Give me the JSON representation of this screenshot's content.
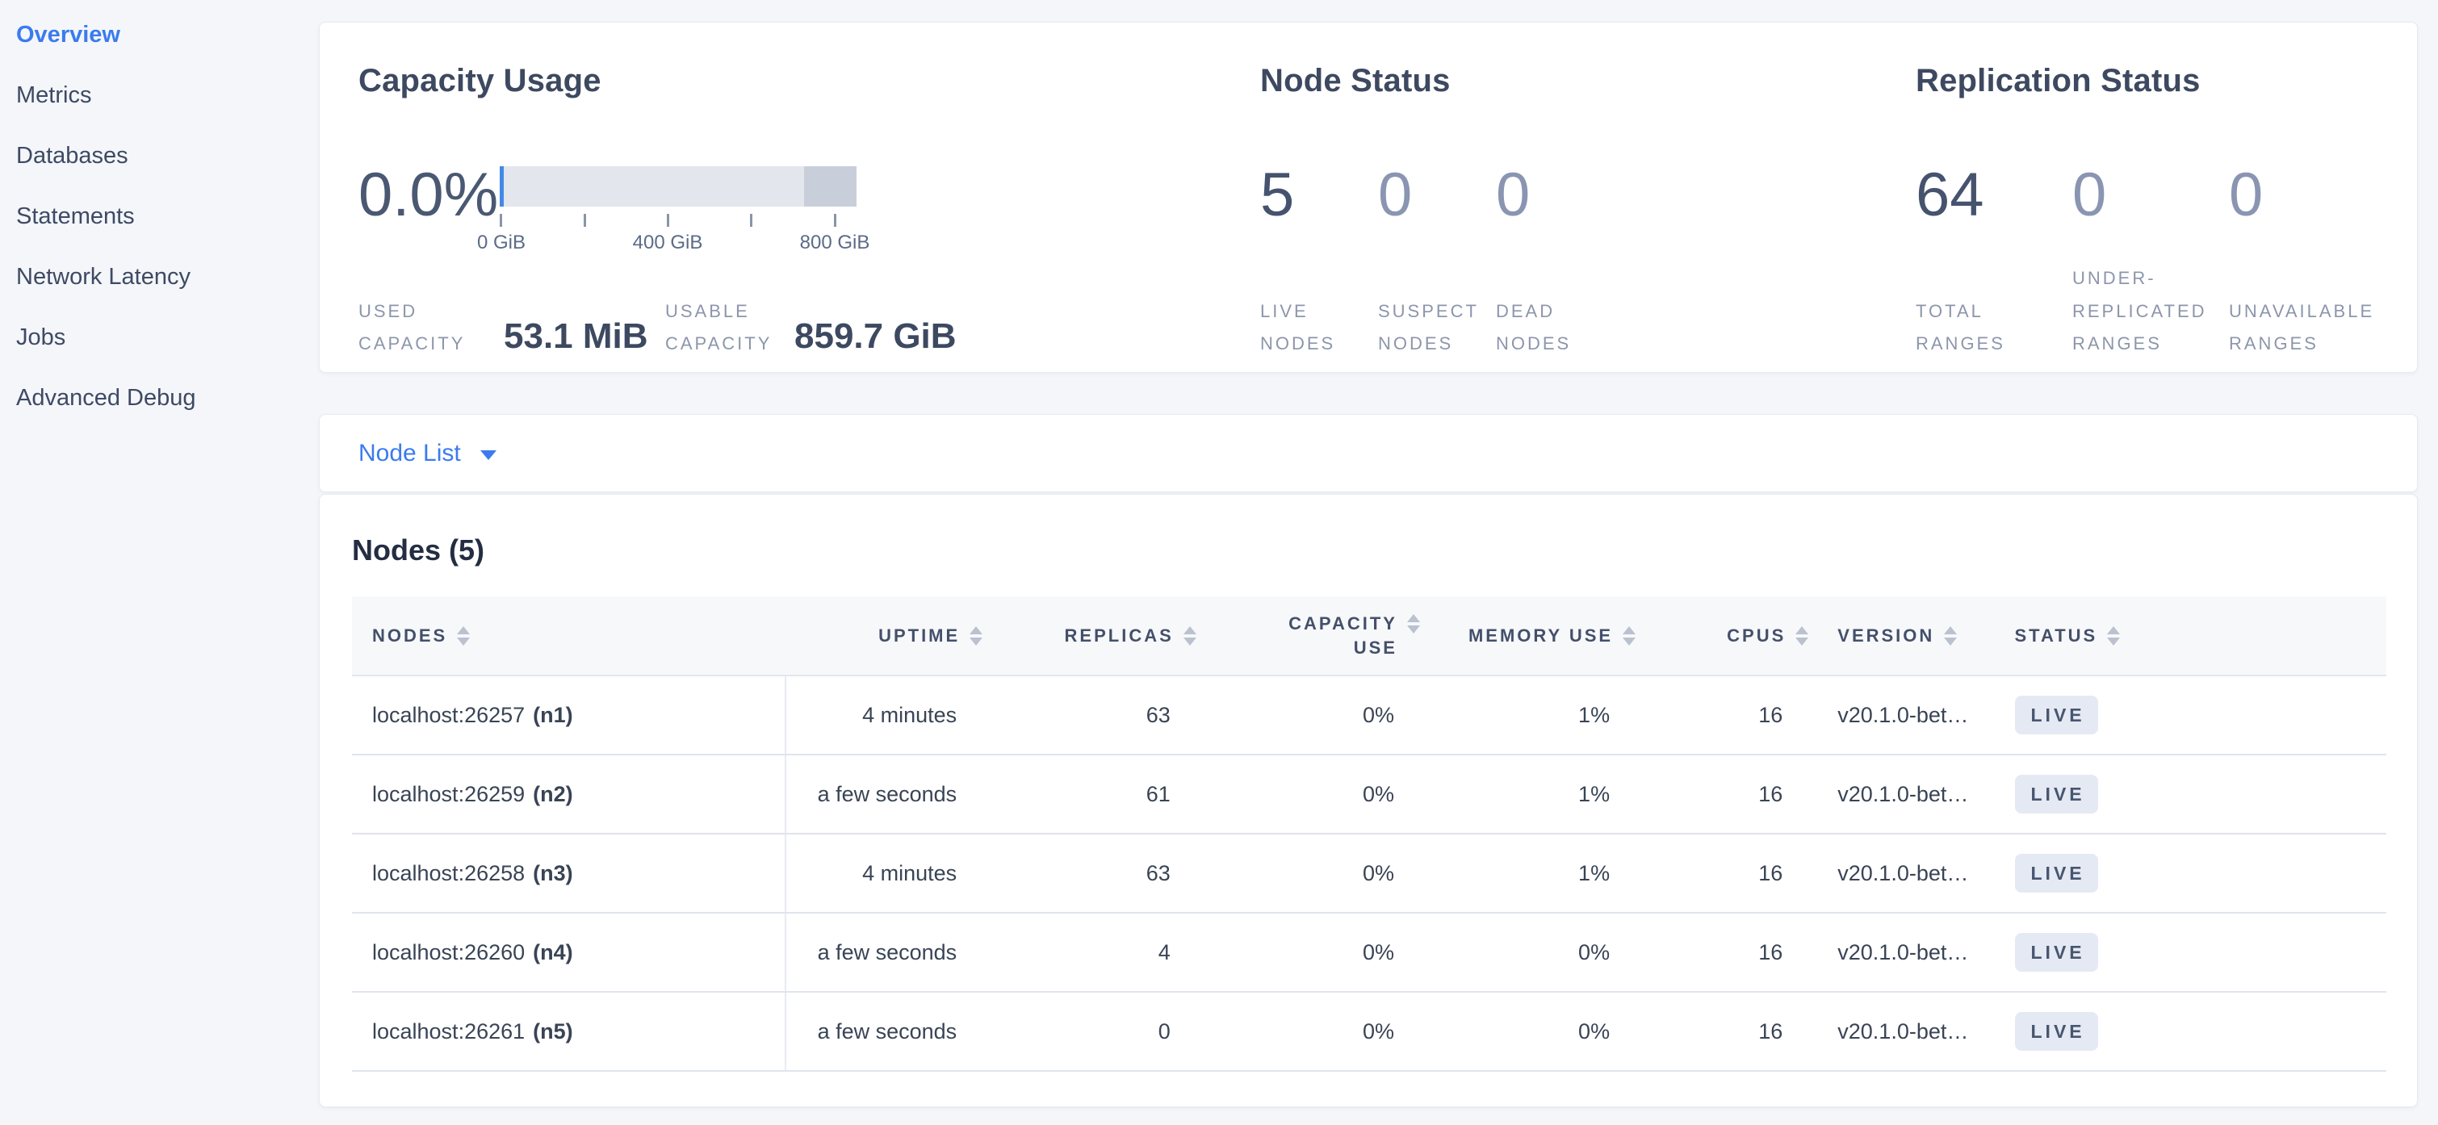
{
  "colors": {
    "accent": "#3b7bef",
    "badge_bg": "#e5e9f3",
    "badge_text": "#475670",
    "bar_light": "#e3e6ed",
    "bar_dark": "#c9cfda",
    "bar_used": "#4388e6"
  },
  "sidebar": {
    "items": [
      {
        "label": "Overview",
        "active": true
      },
      {
        "label": "Metrics"
      },
      {
        "label": "Databases"
      },
      {
        "label": "Statements"
      },
      {
        "label": "Network Latency"
      },
      {
        "label": "Jobs"
      },
      {
        "label": "Advanced Debug"
      }
    ]
  },
  "capacity": {
    "title": "Capacity Usage",
    "percent": "0.0%",
    "bar": {
      "used_pct": 1.1,
      "other_pct": 14.7
    },
    "ticks": [
      "0 GiB",
      "400 GiB",
      "800 GiB"
    ],
    "used_label": "USED CAPACITY",
    "used_value": "53.1 MiB",
    "usable_label": "USABLE CAPACITY",
    "usable_value": "859.7 GiB"
  },
  "node_status": {
    "title": "Node Status",
    "stats": [
      {
        "value": "5",
        "label": "LIVE NODES"
      },
      {
        "value": "0",
        "label": "SUSPECT NODES",
        "muted": true
      },
      {
        "value": "0",
        "label": "DEAD NODES",
        "muted": true
      }
    ]
  },
  "replication_status": {
    "title": "Replication Status",
    "stats": [
      {
        "value": "64",
        "label": "TOTAL RANGES"
      },
      {
        "value": "0",
        "label": "UNDER-REPLICATED RANGES",
        "muted": true
      },
      {
        "value": "0",
        "label": "UNAVAILABLE RANGES",
        "muted": true
      }
    ]
  },
  "node_list": {
    "label": "Node List"
  },
  "table": {
    "title": "Nodes (5)",
    "columns": [
      {
        "label": "NODES",
        "align": "left"
      },
      {
        "label": "UPTIME",
        "align": "right"
      },
      {
        "label": "REPLICAS",
        "align": "right"
      },
      {
        "label": "CAPACITY USE",
        "align": "right",
        "wrap": true
      },
      {
        "label": "MEMORY USE",
        "align": "right"
      },
      {
        "label": "CPUS",
        "align": "right"
      },
      {
        "label": "VERSION",
        "align": "left"
      },
      {
        "label": "STATUS",
        "align": "left"
      }
    ],
    "rows": [
      {
        "address": "localhost:26257",
        "id_label": "(n1)",
        "uptime": "4 minutes",
        "replicas": "63",
        "capacity_use": "0%",
        "memory_use": "1%",
        "cpus": "16",
        "version": "v20.1.0-bet…",
        "status": "LIVE"
      },
      {
        "address": "localhost:26259",
        "id_label": "(n2)",
        "uptime": "a few seconds",
        "replicas": "61",
        "capacity_use": "0%",
        "memory_use": "1%",
        "cpus": "16",
        "version": "v20.1.0-bet…",
        "status": "LIVE"
      },
      {
        "address": "localhost:26258",
        "id_label": "(n3)",
        "uptime": "4 minutes",
        "replicas": "63",
        "capacity_use": "0%",
        "memory_use": "1%",
        "cpus": "16",
        "version": "v20.1.0-bet…",
        "status": "LIVE"
      },
      {
        "address": "localhost:26260",
        "id_label": "(n4)",
        "uptime": "a few seconds",
        "replicas": "4",
        "capacity_use": "0%",
        "memory_use": "0%",
        "cpus": "16",
        "version": "v20.1.0-bet…",
        "status": "LIVE"
      },
      {
        "address": "localhost:26261",
        "id_label": "(n5)",
        "uptime": "a few seconds",
        "replicas": "0",
        "capacity_use": "0%",
        "memory_use": "0%",
        "cpus": "16",
        "version": "v20.1.0-bet…",
        "status": "LIVE"
      }
    ]
  }
}
